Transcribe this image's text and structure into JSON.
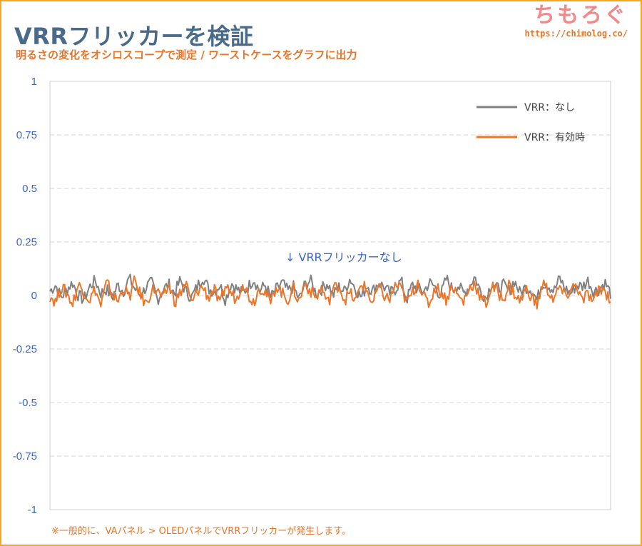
{
  "header": {
    "title": "VRRフリッカーを検証",
    "subtitle": "明るさの変化をオシロスコープで測定 / ワーストケースをグラフに出力"
  },
  "brand": {
    "name": "ちもろぐ",
    "url": "https://chimolog.co/"
  },
  "footnote": "※一般的に、VAパネル > OLEDパネルでVRRフリッカーが発生します。",
  "colors": {
    "vrr_off": "#808080",
    "vrr_on": "#ee7428",
    "tick_label": "#3a66c8",
    "accent": "#e8752a"
  },
  "chart_data": {
    "type": "line",
    "title": "VRRフリッカーを検証",
    "subtitle": "明るさの変化をオシロスコープで測定 / ワーストケースをグラフに出力",
    "ylim": [
      -1,
      1
    ],
    "yticks": [
      1,
      0.75,
      0.5,
      0.25,
      0,
      -0.25,
      -0.5,
      -0.75,
      -1
    ],
    "ytick_labels": [
      "1",
      "0.75",
      "0.5",
      "0.25",
      "0",
      "-0.25",
      "-0.5",
      "-0.75",
      "-1"
    ],
    "grid": true,
    "legend_position": "top-right",
    "annotation": "↓ VRRフリッカーなし",
    "series": [
      {
        "name": "VRR：なし",
        "color": "#808080",
        "values": [
          0.02,
          0.05,
          -0.01,
          0.03,
          0.06,
          0.0,
          -0.02,
          0.04,
          0.07,
          0.01,
          0.03,
          -0.01,
          0.05,
          0.02,
          0.08,
          0.03,
          0.0,
          0.04,
          0.06,
          -0.02,
          0.03,
          0.05,
          0.01,
          0.07,
          0.02,
          -0.01,
          0.04,
          0.09,
          0.03,
          0.02,
          0.05,
          -0.02,
          0.06,
          0.03,
          0.01,
          0.04,
          0.08,
          0.02,
          0.05,
          -0.01,
          0.03,
          0.06,
          0.02,
          0.04,
          -0.02,
          0.05,
          0.07,
          0.01,
          0.03,
          0.06,
          0.0,
          0.04,
          0.02,
          0.08,
          0.03,
          -0.01,
          0.05,
          0.02,
          0.06,
          0.04,
          0.01,
          0.03,
          0.07,
          -0.02,
          0.05,
          0.03,
          0.02,
          0.06,
          0.04,
          0.0,
          0.08,
          0.03,
          0.05,
          0.01,
          0.04,
          0.09,
          0.02,
          -0.01,
          0.06,
          0.03,
          0.05,
          0.02,
          0.07,
          0.01,
          0.04,
          0.03,
          -0.02,
          0.06,
          0.05,
          0.02,
          0.08,
          0.03,
          0.01,
          0.05,
          0.04,
          0.07,
          0.02,
          0.03,
          0.06,
          0.01
        ]
      },
      {
        "name": "VRR：有効時",
        "color": "#ee7428",
        "values": [
          0.0,
          -0.03,
          0.04,
          0.01,
          -0.04,
          0.05,
          0.02,
          -0.02,
          0.03,
          -0.05,
          0.06,
          0.01,
          -0.03,
          0.04,
          -0.01,
          0.07,
          0.0,
          -0.04,
          0.03,
          0.02,
          -0.02,
          0.05,
          -0.03,
          0.01,
          0.06,
          -0.04,
          0.02,
          0.04,
          -0.01,
          0.03,
          -0.05,
          0.05,
          0.01,
          -0.02,
          0.07,
          0.0,
          -0.03,
          0.04,
          0.02,
          -0.04,
          0.05,
          0.01,
          -0.02,
          0.03,
          -0.03,
          0.06,
          0.02,
          -0.01,
          0.04,
          -0.04,
          0.03,
          0.05,
          -0.02,
          0.01,
          -0.03,
          0.06,
          0.02,
          -0.04,
          0.04,
          0.0,
          -0.02,
          0.05,
          0.03,
          -0.03,
          0.01,
          0.07,
          -0.01,
          -0.04,
          0.04,
          0.02,
          -0.02,
          0.05,
          0.0,
          -0.03,
          0.03,
          0.06,
          -0.01,
          -0.04,
          0.04,
          0.02,
          -0.02,
          0.05,
          0.01,
          -0.03,
          0.03,
          0.0,
          -0.05,
          0.06,
          0.02,
          -0.02,
          0.04,
          -0.01,
          0.03,
          0.05,
          -0.03,
          0.01,
          -0.04,
          0.04,
          0.02,
          -0.02
        ]
      }
    ]
  }
}
